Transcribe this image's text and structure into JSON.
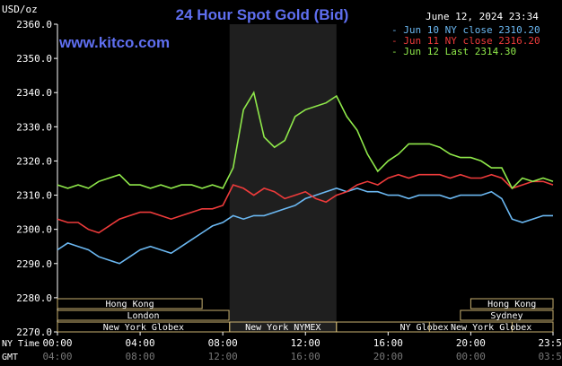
{
  "header": {
    "unit_label": "USD/oz",
    "title": "24 Hour Spot Gold (Bid)",
    "timestamp": "June 12, 2024 23:34",
    "website": "www.kitco.com"
  },
  "legend": [
    {
      "label": "- Jun 10 NY close 2310.20",
      "color": "#6bb8f2"
    },
    {
      "label": "- Jun 11 NY close 2316.20",
      "color": "#ee3b3b"
    },
    {
      "label": "- Jun 12 Last 2314.30",
      "color": "#8fe84a"
    }
  ],
  "time_labels": {
    "ny_time": "NY Time",
    "gmt": "GMT"
  },
  "sessions": [
    {
      "label": "Hong Kong",
      "row": 0
    },
    {
      "label": "London",
      "row": 1
    },
    {
      "label": "New York Globex",
      "row": 2
    },
    {
      "label": "New York NYMEX",
      "row": 2
    },
    {
      "label": "NY Globex",
      "row": 2
    },
    {
      "label": "Hong Kong",
      "row": 0
    },
    {
      "label": "Sydney",
      "row": 1
    },
    {
      "label": "New York Globex",
      "row": 2
    }
  ],
  "chart_data": {
    "type": "line",
    "title": "24 Hour Spot Gold (Bid)",
    "ylabel": "USD/oz",
    "ylim": [
      2270,
      2360
    ],
    "y_ticks": [
      "2270.0",
      "2280.0",
      "2290.0",
      "2300.0",
      "2310.0",
      "2320.0",
      "2330.0",
      "2340.0",
      "2350.0",
      "2360.0"
    ],
    "x_ticks_ny": [
      "00:00",
      "04:00",
      "08:00",
      "12:00",
      "16:00",
      "20:00",
      "23:59"
    ],
    "x_ticks_gmt": [
      "04:00",
      "08:00",
      "12:00",
      "16:00",
      "20:00",
      "00:00",
      "03:59"
    ],
    "x_hours_ny": [
      0,
      1,
      2,
      3,
      4,
      5,
      6,
      7,
      8,
      9,
      10,
      11,
      12,
      13,
      14,
      15,
      16,
      17,
      18,
      19,
      20,
      21,
      22,
      23,
      23.98
    ],
    "series": [
      {
        "name": "Jun 10 NY close 2310.20",
        "color": "#6bb8f2",
        "x": [
          0,
          0.5,
          1,
          1.5,
          2,
          2.5,
          3,
          3.5,
          4,
          4.5,
          5,
          5.5,
          6,
          6.5,
          7,
          7.5,
          8,
          8.5,
          9,
          9.5,
          10,
          10.5,
          11,
          11.5,
          12,
          12.5,
          13,
          13.5,
          14,
          14.5,
          15,
          15.5,
          16,
          16.5,
          17,
          17.5,
          18,
          18.5,
          19,
          19.5,
          20,
          20.5,
          21,
          21.5,
          22,
          22.5,
          23,
          23.5,
          23.98
        ],
        "values": [
          2294,
          2296,
          2295,
          2294,
          2292,
          2291,
          2290,
          2292,
          2294,
          2295,
          2294,
          2293,
          2295,
          2297,
          2299,
          2301,
          2302,
          2304,
          2303,
          2304,
          2304,
          2305,
          2306,
          2307,
          2309,
          2310,
          2311,
          2312,
          2311,
          2312,
          2311,
          2311,
          2310,
          2310,
          2309,
          2310,
          2310,
          2310,
          2309,
          2310,
          2310,
          2310,
          2311,
          2309,
          2303,
          2302,
          2303,
          2304,
          2304
        ]
      },
      {
        "name": "Jun 11 NY close 2316.20",
        "color": "#ee3b3b",
        "x": [
          0,
          0.5,
          1,
          1.5,
          2,
          2.5,
          3,
          3.5,
          4,
          4.5,
          5,
          5.5,
          6,
          6.5,
          7,
          7.5,
          8,
          8.5,
          9,
          9.5,
          10,
          10.5,
          11,
          11.5,
          12,
          12.5,
          13,
          13.5,
          14,
          14.5,
          15,
          15.5,
          16,
          16.5,
          17,
          17.5,
          18,
          18.5,
          19,
          19.5,
          20,
          20.5,
          21,
          21.5,
          22,
          22.5,
          23,
          23.5,
          23.98
        ],
        "values": [
          2303,
          2302,
          2302,
          2300,
          2299,
          2301,
          2303,
          2304,
          2305,
          2305,
          2304,
          2303,
          2304,
          2305,
          2306,
          2306,
          2307,
          2313,
          2312,
          2310,
          2312,
          2311,
          2309,
          2310,
          2311,
          2309,
          2308,
          2310,
          2311,
          2313,
          2314,
          2313,
          2315,
          2316,
          2315,
          2316,
          2316,
          2316,
          2315,
          2316,
          2315,
          2315,
          2316,
          2315,
          2312,
          2313,
          2314,
          2314,
          2313
        ]
      },
      {
        "name": "Jun 12 Last 2314.30",
        "color": "#8fe84a",
        "x": [
          0,
          0.5,
          1,
          1.5,
          2,
          2.5,
          3,
          3.5,
          4,
          4.5,
          5,
          5.5,
          6,
          6.5,
          7,
          7.5,
          8,
          8.5,
          9,
          9.5,
          10,
          10.5,
          11,
          11.5,
          12,
          12.5,
          13,
          13.5,
          14,
          14.5,
          15,
          15.5,
          16,
          16.5,
          17,
          17.5,
          18,
          18.5,
          19,
          19.5,
          20,
          20.5,
          21,
          21.5,
          22,
          22.5,
          23,
          23.5,
          23.98
        ],
        "values": [
          2313,
          2312,
          2313,
          2312,
          2314,
          2315,
          2316,
          2313,
          2313,
          2312,
          2313,
          2312,
          2313,
          2313,
          2312,
          2313,
          2312,
          2318,
          2335,
          2340,
          2327,
          2324,
          2326,
          2333,
          2335,
          2336,
          2337,
          2339,
          2333,
          2329,
          2322,
          2317,
          2320,
          2322,
          2325,
          2325,
          2325,
          2324,
          2322,
          2321,
          2321,
          2320,
          2318,
          2318,
          2312,
          2315,
          2314,
          2315,
          2314
        ]
      }
    ],
    "grid": false,
    "legend_position": "top-right"
  }
}
